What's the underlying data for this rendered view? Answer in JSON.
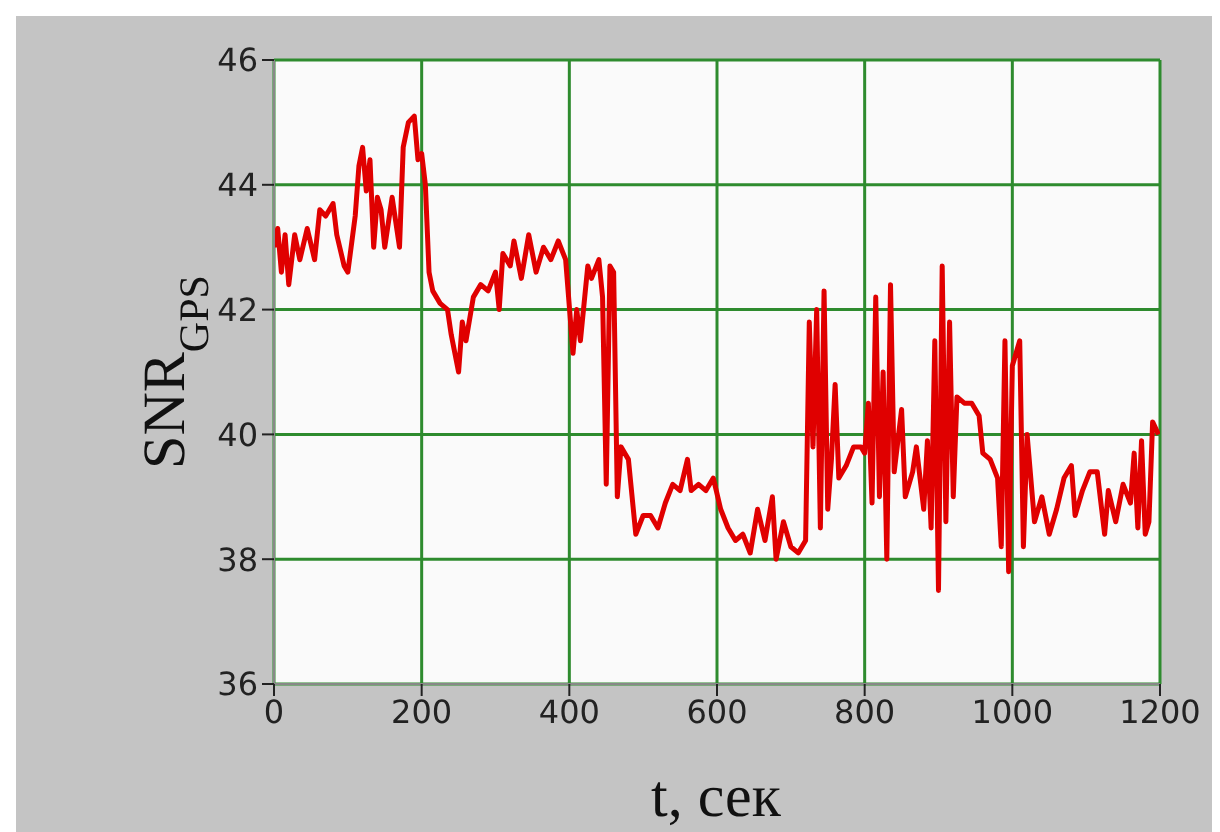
{
  "chart_data": {
    "type": "line",
    "xlabel": "t, сек",
    "ylabel": "SNR$_{GPS}$",
    "x": [
      0,
      5,
      10,
      15,
      20,
      28,
      35,
      45,
      55,
      62,
      70,
      80,
      85,
      95,
      100,
      110,
      115,
      120,
      125,
      130,
      135,
      140,
      145,
      150,
      160,
      170,
      175,
      182,
      190,
      195,
      200,
      205,
      210,
      215,
      225,
      235,
      240,
      250,
      255,
      260,
      270,
      280,
      290,
      300,
      305,
      310,
      320,
      325,
      335,
      345,
      355,
      365,
      375,
      385,
      395,
      405,
      410,
      415,
      425,
      430,
      440,
      445,
      450,
      455,
      460,
      465,
      470,
      480,
      490,
      500,
      510,
      520,
      530,
      540,
      550,
      560,
      565,
      575,
      585,
      595,
      605,
      615,
      625,
      635,
      645,
      655,
      665,
      675,
      680,
      690,
      700,
      710,
      720,
      725,
      730,
      735,
      740,
      745,
      750,
      755,
      760,
      765,
      775,
      785,
      795,
      800,
      805,
      810,
      815,
      820,
      825,
      830,
      835,
      840,
      850,
      855,
      865,
      870,
      880,
      885,
      890,
      895,
      900,
      905,
      910,
      915,
      920,
      925,
      935,
      945,
      955,
      960,
      970,
      980,
      985,
      990,
      995,
      1000,
      1010,
      1015,
      1020,
      1030,
      1040,
      1050,
      1060,
      1070,
      1080,
      1085,
      1095,
      1105,
      1115,
      1125,
      1130,
      1140,
      1150,
      1160,
      1165,
      1170,
      1175,
      1180,
      1185,
      1190,
      1198
    ],
    "series": [
      {
        "color": "#e00000",
        "values": [
          43.0,
          43.3,
          42.6,
          43.2,
          42.4,
          43.2,
          42.8,
          43.3,
          42.8,
          43.6,
          43.5,
          43.7,
          43.2,
          42.7,
          42.6,
          43.5,
          44.3,
          44.6,
          43.9,
          44.4,
          43.0,
          43.8,
          43.6,
          43.0,
          43.8,
          43.0,
          44.6,
          45.0,
          45.1,
          44.4,
          44.5,
          44.0,
          42.6,
          42.3,
          42.1,
          42.0,
          41.6,
          41.0,
          41.8,
          41.5,
          42.2,
          42.4,
          42.3,
          42.6,
          42.0,
          42.9,
          42.7,
          43.1,
          42.5,
          43.2,
          42.6,
          43.0,
          42.8,
          43.1,
          42.8,
          41.3,
          42.0,
          41.5,
          42.7,
          42.5,
          42.8,
          42.2,
          39.2,
          42.7,
          42.6,
          39.0,
          39.8,
          39.6,
          38.4,
          38.7,
          38.7,
          38.5,
          38.9,
          39.2,
          39.1,
          39.6,
          39.1,
          39.2,
          39.1,
          39.3,
          38.8,
          38.5,
          38.3,
          38.4,
          38.1,
          38.8,
          38.3,
          39.0,
          38.0,
          38.6,
          38.2,
          38.1,
          38.3,
          41.8,
          39.8,
          42.0,
          38.5,
          42.3,
          38.8,
          39.6,
          40.8,
          39.3,
          39.5,
          39.8,
          39.8,
          39.7,
          40.5,
          38.9,
          42.2,
          39.0,
          41.0,
          38.0,
          42.4,
          39.4,
          40.4,
          39.0,
          39.4,
          39.8,
          38.8,
          39.9,
          38.5,
          41.5,
          37.5,
          42.7,
          38.6,
          41.8,
          39.0,
          40.6,
          40.5,
          40.5,
          40.3,
          39.7,
          39.6,
          39.3,
          38.2,
          41.5,
          37.8,
          41.1,
          41.5,
          38.2,
          40.0,
          38.6,
          39.0,
          38.4,
          38.8,
          39.3,
          39.5,
          38.7,
          39.1,
          39.4,
          39.4,
          38.4,
          39.1,
          38.6,
          39.2,
          38.9,
          39.7,
          38.5,
          39.9,
          38.4,
          38.6,
          40.2,
          40.0
        ]
      }
    ],
    "xlim": [
      0,
      1200
    ],
    "xticks": [
      0,
      200,
      400,
      600,
      800,
      1000,
      1200
    ],
    "ylim": [
      36,
      46
    ],
    "yticks": [
      36,
      38,
      40,
      42,
      44,
      46
    ],
    "grid": true,
    "legend": false,
    "marker": "none",
    "line_style": "solid"
  }
}
